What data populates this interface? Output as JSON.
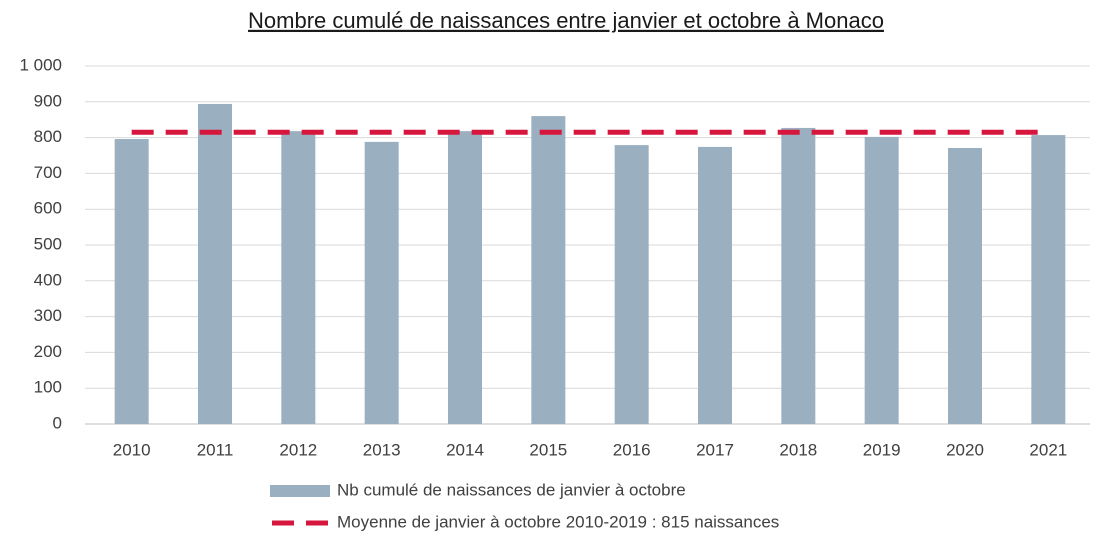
{
  "chart_data": {
    "type": "bar",
    "title": "Nombre cumulé de naissances entre janvier et octobre à Monaco",
    "categories": [
      "2010",
      "2011",
      "2012",
      "2013",
      "2014",
      "2015",
      "2016",
      "2017",
      "2018",
      "2019",
      "2020",
      "2021"
    ],
    "series": [
      {
        "name": "Nb cumulé de naissances de janvier à octobre",
        "type": "bar",
        "color": "#9aafc0",
        "values": [
          796,
          894,
          818,
          788,
          818,
          860,
          779,
          774,
          827,
          802,
          771,
          807
        ]
      },
      {
        "name": "Moyenne de janvier à octobre 2010-2019 : 815 naissances",
        "type": "line",
        "dashed": true,
        "color": "#d6163c",
        "values": [
          815,
          815,
          815,
          815,
          815,
          815,
          815,
          815,
          815,
          815,
          815,
          815
        ]
      }
    ],
    "ylim": [
      0,
      1000
    ],
    "yticks": [
      0,
      100,
      200,
      300,
      400,
      500,
      600,
      700,
      800,
      900,
      {
        "value": 1000,
        "label": "1 000"
      }
    ],
    "grid": true
  }
}
